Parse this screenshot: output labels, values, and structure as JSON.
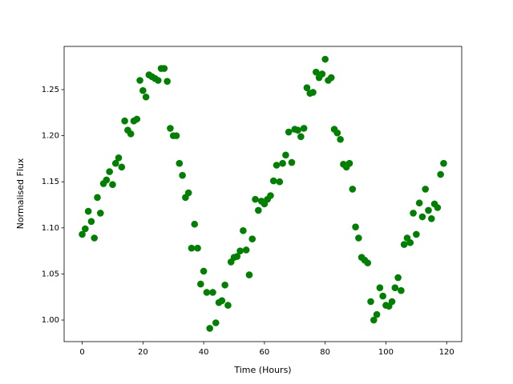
{
  "chart_data": {
    "type": "scatter",
    "x_label": "Time (Hours)",
    "y_label": "Normalised Flux",
    "color": "green",
    "x": [
      0,
      1,
      2,
      3,
      4,
      5,
      6,
      7,
      8,
      9,
      10,
      11,
      12,
      13,
      14,
      15,
      16,
      17,
      18,
      19,
      20,
      21,
      22,
      23,
      24,
      25,
      26,
      27,
      28,
      29,
      30,
      31,
      32,
      33,
      34,
      35,
      36,
      37,
      38,
      39,
      40,
      41,
      42,
      43,
      44,
      45,
      46,
      47,
      48,
      49,
      50,
      51,
      52,
      53,
      54,
      55,
      56,
      57,
      58,
      59,
      60,
      61,
      62,
      63,
      64,
      65,
      66,
      67,
      68,
      69,
      70,
      71,
      72,
      73,
      74,
      75,
      76,
      77,
      78,
      79,
      80,
      81,
      82,
      83,
      84,
      85,
      86,
      87,
      88,
      89,
      90,
      91,
      92,
      93,
      94,
      95,
      96,
      97,
      98,
      99,
      100,
      101,
      102,
      103,
      104,
      105,
      106,
      107,
      108,
      109,
      110,
      111,
      112,
      113,
      114,
      115,
      116,
      117,
      118,
      119
    ],
    "values": [
      1.093,
      1.099,
      1.118,
      1.107,
      1.089,
      1.133,
      1.116,
      1.148,
      1.152,
      1.161,
      1.147,
      1.17,
      1.176,
      1.166,
      1.216,
      1.206,
      1.202,
      1.216,
      1.218,
      1.26,
      1.249,
      1.242,
      1.266,
      1.264,
      1.262,
      1.26,
      1.273,
      1.273,
      1.259,
      1.208,
      1.2,
      1.2,
      1.17,
      1.157,
      1.133,
      1.138,
      1.078,
      1.104,
      1.078,
      1.039,
      1.053,
      1.03,
      0.991,
      1.03,
      0.997,
      1.019,
      1.021,
      1.038,
      1.016,
      1.063,
      1.068,
      1.069,
      1.075,
      1.097,
      1.076,
      1.049,
      1.088,
      1.131,
      1.119,
      1.129,
      1.126,
      1.131,
      1.135,
      1.151,
      1.168,
      1.15,
      1.17,
      1.179,
      1.204,
      1.171,
      1.207,
      1.206,
      1.199,
      1.208,
      1.252,
      1.246,
      1.247,
      1.269,
      1.263,
      1.267,
      1.283,
      1.26,
      1.263,
      1.207,
      1.203,
      1.196,
      1.169,
      1.166,
      1.17,
      1.142,
      1.101,
      1.089,
      1.068,
      1.065,
      1.062,
      1.02,
      1.0,
      1.006,
      1.035,
      1.026,
      1.016,
      1.015,
      1.02,
      1.035,
      1.046,
      1.032,
      1.082,
      1.089,
      1.084,
      1.116,
      1.093,
      1.127,
      1.112,
      1.142,
      1.119,
      1.11,
      1.126,
      1.122,
      1.158,
      1.17
    ],
    "xlim": [
      -5.95,
      124.95
    ],
    "xticks": [
      0,
      20,
      40,
      60,
      80,
      100,
      120
    ],
    "ylim": [
      0.9766,
      1.2969
    ],
    "yticks": [
      {
        "value": 1.0,
        "label": "1.00"
      },
      {
        "value": 1.05,
        "label": "1.05"
      },
      {
        "value": 1.1,
        "label": "1.10"
      },
      {
        "value": 1.15,
        "label": "1.15"
      },
      {
        "value": 1.2,
        "label": "1.20"
      },
      {
        "value": 1.25,
        "label": "1.25"
      }
    ],
    "grid": false
  }
}
